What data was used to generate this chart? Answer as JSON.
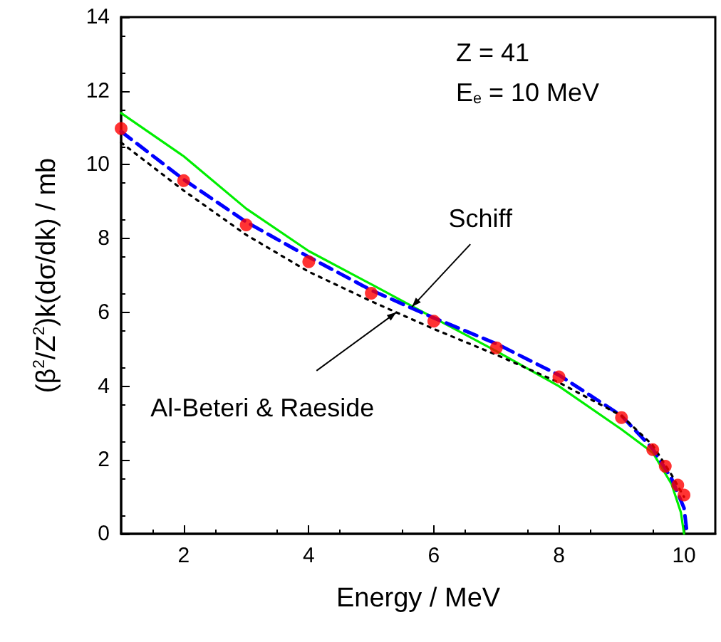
{
  "chart_data": {
    "type": "line",
    "xlabel": "Energy / MeV",
    "ylabel": "(β$^{2}$/Z$^{2}$)k(dσ/dk) / mb",
    "xlim": [
      1,
      10.5
    ],
    "xticks": [
      2,
      4,
      6,
      8,
      10
    ],
    "ylim": [
      0,
      14
    ],
    "yticks": [
      0,
      2,
      4,
      6,
      8,
      10,
      12,
      14
    ],
    "grid": false,
    "marker": "none",
    "annotations": [
      "Z = 41",
      "E$_{e}$ = 10 MeV",
      {
        "text": "Schiff",
        "x": 5.65,
        "y": 6.15
      },
      {
        "text": "Al-Beteri & Raeside",
        "x": 5.4,
        "y": 6.0
      }
    ],
    "series": [
      {
        "color": "#00ee00",
        "line_style": "solid",
        "x": [
          1,
          2,
          3,
          4,
          5,
          6,
          7,
          8,
          9,
          9.5,
          9.8,
          9.95,
          10
        ],
        "values": [
          11.4,
          10.23,
          8.81,
          7.66,
          6.76,
          5.85,
          4.95,
          4.0,
          2.83,
          2.2,
          1.35,
          0.58,
          0
        ]
      },
      {
        "color": "#0000ff",
        "line_style": "dashed",
        "x": [
          1,
          2,
          3,
          4,
          5,
          6,
          7,
          8,
          9,
          9.5,
          9.8,
          10,
          10.05
        ],
        "values": [
          10.9,
          9.6,
          8.45,
          7.5,
          6.6,
          5.85,
          5.15,
          4.3,
          3.2,
          2.3,
          1.5,
          0.7,
          0
        ]
      },
      {
        "color": "#000000",
        "line_style": "dotted",
        "x": [
          1,
          2,
          3,
          4,
          5,
          6,
          7,
          8,
          9,
          9.5,
          9.8,
          10
        ],
        "values": [
          10.6,
          9.3,
          8.1,
          7.1,
          6.3,
          5.55,
          4.85,
          4.1,
          3.2,
          2.4,
          1.6,
          1.0
        ]
      },
      {
        "type": "scatter",
        "color": "#ff0000",
        "marker": "circle",
        "x": [
          1,
          2,
          3,
          4,
          5,
          6,
          7,
          8,
          9,
          9.5,
          9.7,
          9.9,
          10
        ],
        "values": [
          10.98,
          9.57,
          8.37,
          7.37,
          6.52,
          5.76,
          5.04,
          4.25,
          3.15,
          2.28,
          1.83,
          1.32,
          1.05
        ]
      }
    ]
  }
}
